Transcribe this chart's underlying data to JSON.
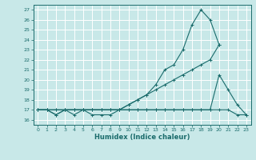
{
  "xlabel": "Humidex (Indice chaleur)",
  "xlim": [
    -0.5,
    23.5
  ],
  "ylim": [
    15.5,
    27.5
  ],
  "yticks": [
    16,
    17,
    18,
    19,
    20,
    21,
    22,
    23,
    24,
    25,
    26,
    27
  ],
  "xticks": [
    0,
    1,
    2,
    3,
    4,
    5,
    6,
    7,
    8,
    9,
    10,
    11,
    12,
    13,
    14,
    15,
    16,
    17,
    18,
    19,
    20,
    21,
    22,
    23
  ],
  "bg_color": "#c8e8e8",
  "grid_color": "#ffffff",
  "line_color": "#1a6b6b",
  "series": [
    {
      "x": [
        0,
        1,
        2,
        3,
        4,
        5,
        6,
        7,
        8,
        9,
        10,
        11,
        12,
        13,
        14,
        15,
        16,
        17,
        18,
        19,
        20
      ],
      "y": [
        17,
        17,
        16.5,
        17,
        16.5,
        17,
        16.5,
        16.5,
        16.5,
        17,
        17.5,
        18,
        18.5,
        19.5,
        21,
        21.5,
        23,
        25.5,
        27,
        26,
        23.5
      ]
    },
    {
      "x": [
        0,
        1,
        2,
        3,
        4,
        5,
        6,
        7,
        8,
        9,
        10,
        11,
        12,
        13,
        14,
        15,
        16,
        17,
        18,
        19,
        20,
        21,
        22,
        23
      ],
      "y": [
        17,
        17,
        17,
        17,
        17,
        17,
        17,
        17,
        17,
        17,
        17.5,
        18,
        18.5,
        19,
        19.5,
        20,
        20.5,
        21,
        21.5,
        22,
        23.5,
        null,
        null,
        null
      ]
    },
    {
      "x": [
        0,
        1,
        2,
        3,
        4,
        5,
        6,
        7,
        8,
        9,
        10,
        11,
        12,
        13,
        14,
        15,
        16,
        17,
        18,
        19,
        20,
        21,
        22,
        23
      ],
      "y": [
        17,
        17,
        16.5,
        17,
        17,
        17,
        17,
        17,
        17,
        17,
        17,
        17,
        17,
        17,
        17,
        17,
        17,
        17,
        17,
        17,
        20.5,
        19,
        17.5,
        16.5
      ]
    },
    {
      "x": [
        0,
        1,
        2,
        3,
        4,
        5,
        6,
        7,
        8,
        9,
        10,
        11,
        12,
        13,
        14,
        15,
        16,
        17,
        18,
        19,
        20,
        21,
        22,
        23
      ],
      "y": [
        17,
        17,
        17,
        17,
        17,
        17,
        17,
        17,
        17,
        17,
        17,
        17,
        17,
        17,
        17,
        17,
        17,
        17,
        17,
        17,
        17,
        17,
        16.5,
        16.5
      ]
    }
  ]
}
